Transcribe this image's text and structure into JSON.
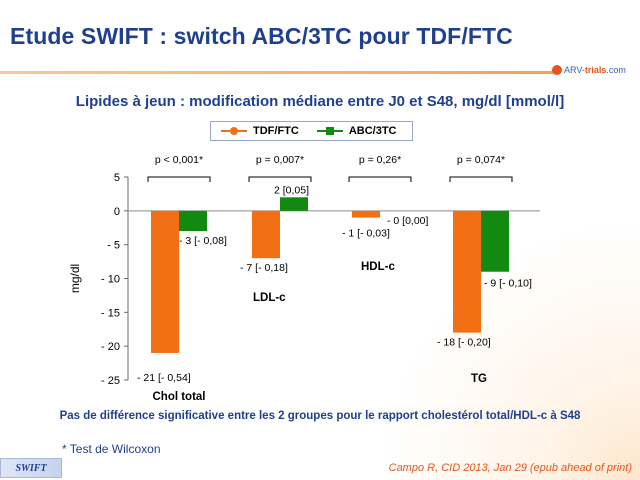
{
  "title": "Etude SWIFT : switch ABC/3TC pour TDF/FTC",
  "logo": {
    "prefix": "ARV-",
    "brand": "trials",
    "suffix": ".com"
  },
  "chart_data": {
    "type": "bar",
    "title": "Lipides à jeun : modification médiane entre J0 et S48, mg/dl [mmol/l]",
    "ylabel": "mg/dl",
    "ylim": [
      -25,
      5
    ],
    "yticks": [
      5,
      0,
      -5,
      -10,
      -15,
      -20,
      -25
    ],
    "ytick_labels": [
      "5",
      "0",
      "- 5",
      "- 10",
      "- 15",
      "- 20",
      "- 25"
    ],
    "categories": [
      "Chol total",
      "LDL-c",
      "HDL-c",
      "TG"
    ],
    "series": [
      {
        "name": "TDF/FTC",
        "color": "#f36f13",
        "values": [
          -21,
          -7,
          -1,
          -18
        ],
        "labels": [
          "- 21 [- 0,54]",
          "- 7 [- 0,18]",
          "- 1 [- 0,03]",
          "- 18 [- 0,20]"
        ]
      },
      {
        "name": "ABC/3TC",
        "color": "#128a12",
        "values": [
          -3,
          2,
          0,
          -9
        ],
        "labels": [
          "- 3 [- 0,08]",
          "2 [0,05]",
          "- 0 [0,00]",
          "- 9 [- 0,10]"
        ]
      }
    ],
    "p_values": [
      "p < 0,001*",
      "p = 0,007*",
      "p = 0,26*",
      "p = 0,074*"
    ],
    "grid": false,
    "legend_position": "top-center"
  },
  "footnote": "Pas de différence significative entre les 2 groupes pour le rapport cholestérol total/HDL-c à S48",
  "test_note": "* Test de Wilcoxon",
  "tag": "SWIFT",
  "citation": "Campo R, CID 2013, Jan 29 (epub ahead of print)"
}
